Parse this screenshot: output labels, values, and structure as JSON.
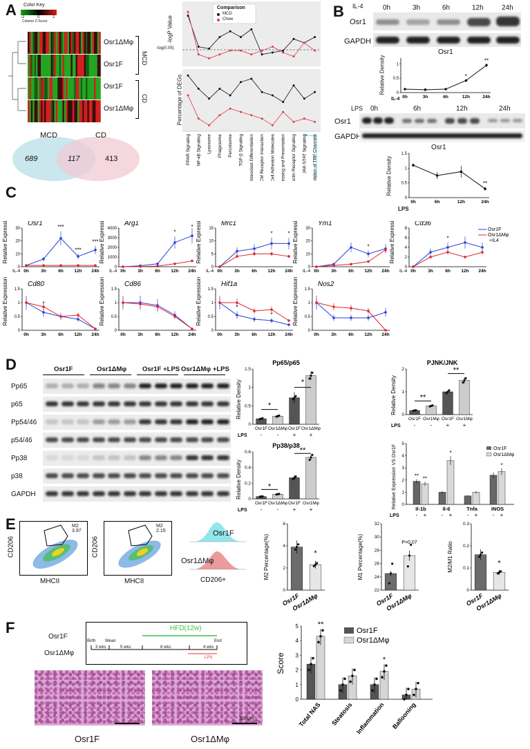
{
  "panels": [
    "A",
    "B",
    "C",
    "D",
    "E",
    "F"
  ],
  "panelA": {
    "color_key_title": "Color Key",
    "color_key_ticks": [
      "-2",
      "0",
      "2"
    ],
    "color_key_axis": "Column Z-Score",
    "heat_rows": [
      "Osr1ΔMφ",
      "Osr1F",
      "Osr1F",
      "Osr1ΔMφ"
    ],
    "group_mcd": "MCD",
    "group_cd": "CD",
    "venn": {
      "left_label": "MCD",
      "right_label": "CD",
      "left_only": "689",
      "overlap": "117",
      "right_only": "413"
    },
    "legend_title": "Comparison",
    "legend_items": [
      "MCD",
      "Chow"
    ],
    "ylabel_top": "-logP Value",
    "threshold_label": "-log(0.05)",
    "ylabel_bottom": "Percentage of DEGs",
    "pathways": [
      "PPAR Signaling",
      "NF-κB Signaling",
      "Lysosome",
      "Phagosome",
      "Peroxisome",
      "TGF-β Signaling",
      "Osteoclast Differentiation",
      "ECM Receptor Interaction",
      "Cell Adhesion Molecules",
      "Antigen Processing and Presentation",
      "C-type Lectin Receptor Signaling",
      "JAK-STAT Signaling",
      "Inflammatory Mediated Regulation of TRP Channels"
    ]
  },
  "panelB": {
    "il4_label": "IL-4",
    "il4_times": [
      "0h",
      "3h",
      "6h",
      "12h",
      "24h"
    ],
    "lps_label": "LPS",
    "lps_times": [
      "0h",
      "6h",
      "12h",
      "24h"
    ],
    "row_osr1": "Osr1",
    "row_gapdh": "GAPDH",
    "chart_title": "Osr1",
    "ylabel": "Relative Density",
    "sig": "*",
    "sig2": "**"
  },
  "panelC": {
    "ylabel": "Relative Expression",
    "xlabels": [
      "0h",
      "3h",
      "6h",
      "12h",
      "24h"
    ],
    "treatment": "IL-4",
    "legend": [
      "Osr1F",
      "Osr1ΔMφ",
      "+IL4"
    ],
    "genes_row1": [
      "Osr1",
      "Arg1",
      "Mrc1",
      "Ym1",
      "Cd36"
    ],
    "genes_row2": [
      "Cd80",
      "Cd86",
      "Hif1a",
      "Nos2"
    ],
    "sig": [
      "***",
      "*",
      "**"
    ]
  },
  "panelD": {
    "groups": [
      "Osr1F",
      "Osr1ΔMφ",
      "Osr1F +LPS",
      "Osr1ΔMφ +LPS"
    ],
    "rows": [
      "Pp65",
      "p65",
      "Pp54/46",
      "p54/46",
      "Pp38",
      "p38",
      "GAPDH"
    ],
    "chart1_title": "Pp65/p65",
    "chart2_title": "PJNK/JNK",
    "chart3_title": "Pp38/p38",
    "ylabel": "Relative Density",
    "lps_row_label": "LPS",
    "lps_signs": [
      "-",
      "-",
      "+",
      "+"
    ],
    "xcats": [
      "Osr1F",
      "Osr1ΔMφ",
      "Osr1F",
      "Osr1ΔMφ"
    ],
    "chart4_ylabel": "Relative Expression VS Osr1F",
    "chart4_cats": [
      "Il-1b",
      "Il-6",
      "Tnfa",
      "iNOS"
    ],
    "chart4_legend": [
      "Osr1F",
      "Osr1ΔMφ"
    ],
    "sig1": "*",
    "sig2": "**"
  },
  "panelE": {
    "flow_ylabel": "CD206",
    "flow_xlabel": "MHCII",
    "gate1": "M2\n3.97",
    "gate2": "M2\n2.15",
    "hist_labels": [
      "Osr1F",
      "Osr1ΔMφ"
    ],
    "hist_xlabel": "CD206+",
    "chart1_ylabel": "M2 Percentage(%)",
    "chart2_ylabel": "M1 Percentage(%)",
    "chart3_ylabel": "M2/M1 Ratio",
    "pval": "P=0.07",
    "cats": [
      "Osr1F",
      "Osr1ΔMφ"
    ],
    "sig": "*"
  },
  "panelF": {
    "genotypes": [
      "Osr1F",
      "Osr1ΔMφ"
    ],
    "timeline": {
      "hfd": "HFD(12w)",
      "start": "Birth",
      "wean": "Wean",
      "end": "End",
      "seg1": "3 wks",
      "seg2": "5 wks",
      "seg3": "8 wks",
      "seg4": "4 wks",
      "lps": "LPS"
    },
    "scale_bar": "300um",
    "image_labels": [
      "Osr1F",
      "Osr1ΔMφ"
    ],
    "ylabel": "Score",
    "cats": [
      "Total NAS",
      "Steatosis",
      "Inflammation",
      "Ballooning"
    ],
    "legend": [
      "Osr1F",
      "Osr1ΔMφ"
    ],
    "sig1": "**",
    "sig2": "*"
  },
  "chart_data": [
    {
      "type": "line",
      "title": "Osr1",
      "xlabel": "IL-4",
      "ylabel": "Relative Density",
      "categories": [
        "0h",
        "3h",
        "6h",
        "12h",
        "24h"
      ],
      "series": [
        {
          "values": [
            0.12,
            0.1,
            0.12,
            0.42,
            0.95
          ]
        }
      ],
      "ylim": [
        0,
        1.2
      ]
    },
    {
      "type": "line",
      "title": "Osr1",
      "xlabel": "LPS",
      "ylabel": "Relative Density",
      "categories": [
        "0h",
        "6h",
        "12h",
        "24h"
      ],
      "series": [
        {
          "values": [
            1.1,
            0.75,
            0.88,
            0.3
          ]
        }
      ],
      "ylim": [
        0,
        1.5
      ]
    },
    {
      "type": "bar",
      "title": "Pp65/p65",
      "ylabel": "Relative Density",
      "categories": [
        "Osr1F",
        "Osr1ΔMφ",
        "Osr1F",
        "Osr1ΔMφ"
      ],
      "values": [
        0.15,
        0.22,
        0.72,
        1.32
      ],
      "ylim": [
        0,
        1.5
      ]
    },
    {
      "type": "bar",
      "title": "PJNK/JNK",
      "ylabel": "Relative Density",
      "categories": [
        "Osr1F",
        "Osr1Mφ",
        "Osr1F",
        "Osr1Mφ"
      ],
      "values": [
        0.18,
        0.38,
        1.0,
        1.5
      ],
      "ylim": [
        0,
        2
      ]
    },
    {
      "type": "bar",
      "title": "Pp38/p38",
      "ylabel": "Relative Density",
      "categories": [
        "Osr1F",
        "Osr1ΔMφ",
        "Osr1F",
        "Osr1Mφ"
      ],
      "values": [
        0.03,
        0.06,
        0.27,
        0.53
      ],
      "ylim": [
        0,
        0.6
      ]
    },
    {
      "type": "bar",
      "ylabel": "Relative Expression VS Osr1F",
      "categories": [
        "Il-1b",
        "Il-6",
        "Tnfa",
        "iNOS"
      ],
      "series": [
        {
          "name": "Osr1F",
          "values": [
            1.9,
            1.0,
            0.7,
            2.4
          ]
        },
        {
          "name": "Osr1ΔMφ",
          "values": [
            1.7,
            3.6,
            1.0,
            2.7
          ]
        }
      ],
      "ylim": [
        0,
        5
      ]
    },
    {
      "type": "bar",
      "ylabel": "M2 Percentage(%)",
      "categories": [
        "Osr1F",
        "Osr1ΔMφ"
      ],
      "values": [
        3.9,
        2.3
      ],
      "ylim": [
        0,
        6
      ]
    },
    {
      "type": "bar",
      "ylabel": "M1 Percentage(%)",
      "categories": [
        "Osr1F",
        "Osr1ΔMφ"
      ],
      "values": [
        24.5,
        27.2
      ],
      "ylim": [
        22,
        32
      ]
    },
    {
      "type": "bar",
      "ylabel": "M2/M1 Ratio",
      "categories": [
        "Osr1F",
        "Osr1ΔMφ"
      ],
      "values": [
        0.16,
        0.08
      ],
      "ylim": [
        0,
        0.3
      ]
    },
    {
      "type": "bar",
      "ylabel": "Score",
      "categories": [
        "Total NAS",
        "Steatosis",
        "Inflammation",
        "Ballooning"
      ],
      "series": [
        {
          "name": "Osr1F",
          "values": [
            2.4,
            1.0,
            1.0,
            0.3
          ]
        },
        {
          "name": "Osr1ΔMφ",
          "values": [
            4.3,
            1.6,
            1.9,
            0.7
          ]
        }
      ],
      "ylim": [
        0,
        5
      ]
    }
  ]
}
